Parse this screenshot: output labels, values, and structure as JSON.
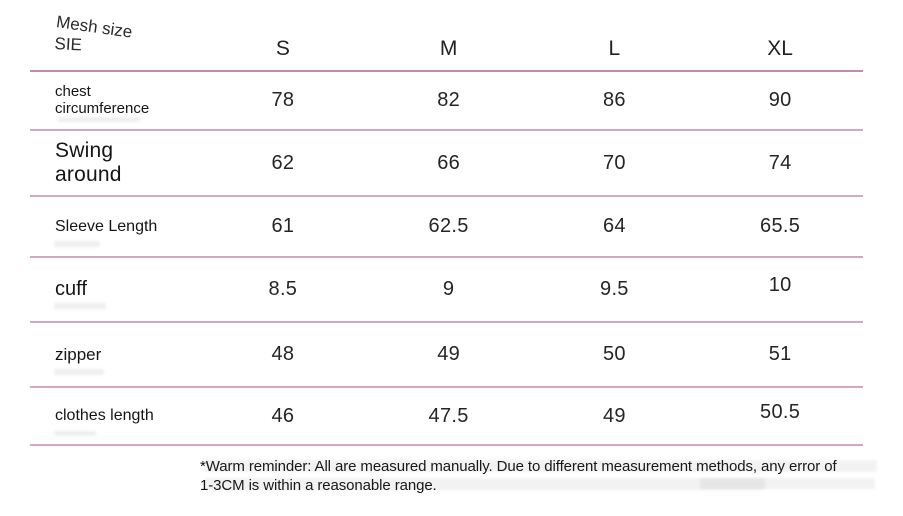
{
  "header": {
    "corner_line1": "Mesh size",
    "corner_line2": "SIE",
    "sizes": [
      "S",
      "M",
      "L",
      "XL"
    ]
  },
  "rows": [
    {
      "label_line1": "chest",
      "label_line2": "circumference",
      "values": [
        "78",
        "82",
        "86",
        "90"
      ]
    },
    {
      "label_line1": "Swing",
      "label_line2": "around",
      "values": [
        "62",
        "66",
        "70",
        "74"
      ]
    },
    {
      "label_line1": "Sleeve Length",
      "label_line2": "",
      "values": [
        "61",
        "62.5",
        "64",
        "65.5"
      ]
    },
    {
      "label_line1": "cuff",
      "label_line2": "",
      "values": [
        "8.5",
        "9",
        "9.5",
        "10"
      ]
    },
    {
      "label_line1": "zipper",
      "label_line2": "",
      "values": [
        "48",
        "49",
        "50",
        "51"
      ]
    },
    {
      "label_line1": "clothes length",
      "label_line2": "",
      "values": [
        "46",
        "47.5",
        "49",
        "50.5"
      ]
    }
  ],
  "footnote": {
    "line1": "*Warm reminder: All are measured manually. Due to different measurement methods, any error of",
    "line2": "1-3CM is within a reasonable range."
  },
  "colors": {
    "divider": "#c58caa",
    "text": "#1d1d1f",
    "background": "#ffffff"
  },
  "chart_data": {
    "type": "table",
    "title": "Mesh size (SIE)",
    "columns": [
      "S",
      "M",
      "L",
      "XL"
    ],
    "rows": [
      {
        "label": "chest circumference",
        "values": [
          78,
          82,
          86,
          90
        ]
      },
      {
        "label": "Swing around",
        "values": [
          62,
          66,
          70,
          74
        ]
      },
      {
        "label": "Sleeve Length",
        "values": [
          61,
          62.5,
          64,
          65.5
        ]
      },
      {
        "label": "cuff",
        "values": [
          8.5,
          9,
          9.5,
          10
        ]
      },
      {
        "label": "zipper",
        "values": [
          48,
          49,
          50,
          51
        ]
      },
      {
        "label": "clothes length",
        "values": [
          46,
          47.5,
          49,
          50.5
        ]
      }
    ],
    "footnote": "*Warm reminder: All are measured manually. Due to different measurement methods, any error of 1-3CM is within a reasonable range."
  }
}
